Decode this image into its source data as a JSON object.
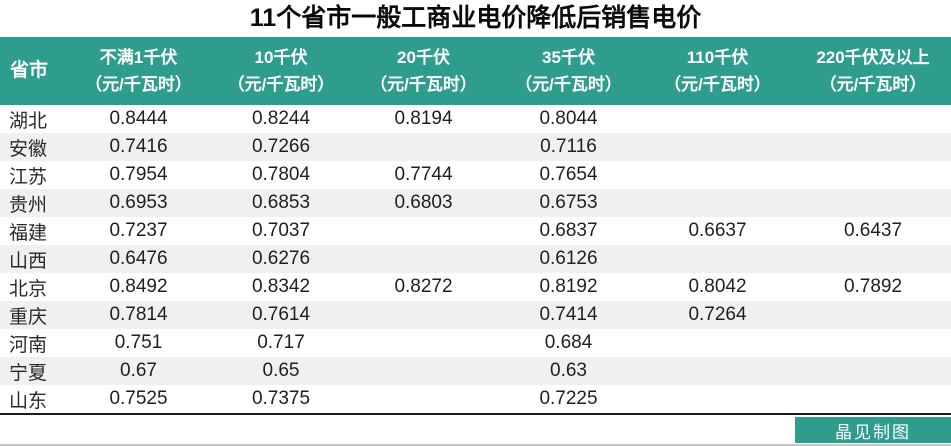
{
  "title": "11个省市一般工商业电价降低后销售电价",
  "colors": {
    "header_bg": "#2f9d8e",
    "stripe_bg": "#f1eff1",
    "badge_bg": "#2f9d8e",
    "table_bottom_border": "#1c1c1c",
    "page_bottom_line": "#c6c6c6",
    "title_text": "#0b0b0b",
    "header_text": "#ffffff",
    "cell_text": "#1f1f1f"
  },
  "table": {
    "corner_header": "省市",
    "columns": [
      {
        "label": "不满1千伏",
        "unit": "（元/千瓦时）"
      },
      {
        "label": "10千伏",
        "unit": "（元/千瓦时）"
      },
      {
        "label": "20千伏",
        "unit": "（元/千瓦时）"
      },
      {
        "label": "35千伏",
        "unit": "（元/千瓦时）"
      },
      {
        "label": "110千伏",
        "unit": "（元/千瓦时）"
      },
      {
        "label": "220千伏及以上",
        "unit": "（元/千瓦时）"
      }
    ],
    "rows": [
      {
        "province": "湖北",
        "values": [
          "0.8444",
          "0.8244",
          "0.8194",
          "0.8044",
          "",
          ""
        ]
      },
      {
        "province": "安徽",
        "values": [
          "0.7416",
          "0.7266",
          "",
          "0.7116",
          "",
          ""
        ]
      },
      {
        "province": "江苏",
        "values": [
          "0.7954",
          "0.7804",
          "0.7744",
          "0.7654",
          "",
          ""
        ]
      },
      {
        "province": "贵州",
        "values": [
          "0.6953",
          "0.6853",
          "0.6803",
          "0.6753",
          "",
          ""
        ]
      },
      {
        "province": "福建",
        "values": [
          "0.7237",
          "0.7037",
          "",
          "0.6837",
          "0.6637",
          "0.6437"
        ]
      },
      {
        "province": "山西",
        "values": [
          "0.6476",
          "0.6276",
          "",
          "0.6126",
          "",
          ""
        ]
      },
      {
        "province": "北京",
        "values": [
          "0.8492",
          "0.8342",
          "0.8272",
          "0.8192",
          "0.8042",
          "0.7892"
        ]
      },
      {
        "province": "重庆",
        "values": [
          "0.7814",
          "0.7614",
          "",
          "0.7414",
          "0.7264",
          ""
        ]
      },
      {
        "province": "河南",
        "values": [
          "0.751",
          "0.717",
          "",
          "0.684",
          "",
          ""
        ]
      },
      {
        "province": "宁夏",
        "values": [
          "0.67",
          "0.65",
          "",
          "0.63",
          "",
          ""
        ]
      },
      {
        "province": "山东",
        "values": [
          "0.7525",
          "0.7375",
          "",
          "0.7225",
          "",
          ""
        ]
      }
    ]
  },
  "footer": {
    "credit_badge": "晶见制图"
  },
  "chart_data": {
    "type": "table",
    "title": "11个省市一般工商业电价降低后销售电价",
    "columns": [
      "省市",
      "不满1千伏（元/千瓦时）",
      "10千伏（元/千瓦时）",
      "20千伏（元/千瓦时）",
      "35千伏（元/千瓦时）",
      "110千伏（元/千瓦时）",
      "220千伏及以上（元/千瓦时）"
    ],
    "rows": [
      [
        "湖北",
        0.8444,
        0.8244,
        0.8194,
        0.8044,
        null,
        null
      ],
      [
        "安徽",
        0.7416,
        0.7266,
        null,
        0.7116,
        null,
        null
      ],
      [
        "江苏",
        0.7954,
        0.7804,
        0.7744,
        0.7654,
        null,
        null
      ],
      [
        "贵州",
        0.6953,
        0.6853,
        0.6803,
        0.6753,
        null,
        null
      ],
      [
        "福建",
        0.7237,
        0.7037,
        null,
        0.6837,
        0.6637,
        0.6437
      ],
      [
        "山西",
        0.6476,
        0.6276,
        null,
        0.6126,
        null,
        null
      ],
      [
        "北京",
        0.8492,
        0.8342,
        0.8272,
        0.8192,
        0.8042,
        0.7892
      ],
      [
        "重庆",
        0.7814,
        0.7614,
        null,
        0.7414,
        0.7264,
        null
      ],
      [
        "河南",
        0.751,
        0.717,
        null,
        0.684,
        null,
        null
      ],
      [
        "宁夏",
        0.67,
        0.65,
        null,
        0.63,
        null,
        null
      ],
      [
        "山东",
        0.7525,
        0.7375,
        null,
        0.7225,
        null,
        null
      ]
    ]
  }
}
